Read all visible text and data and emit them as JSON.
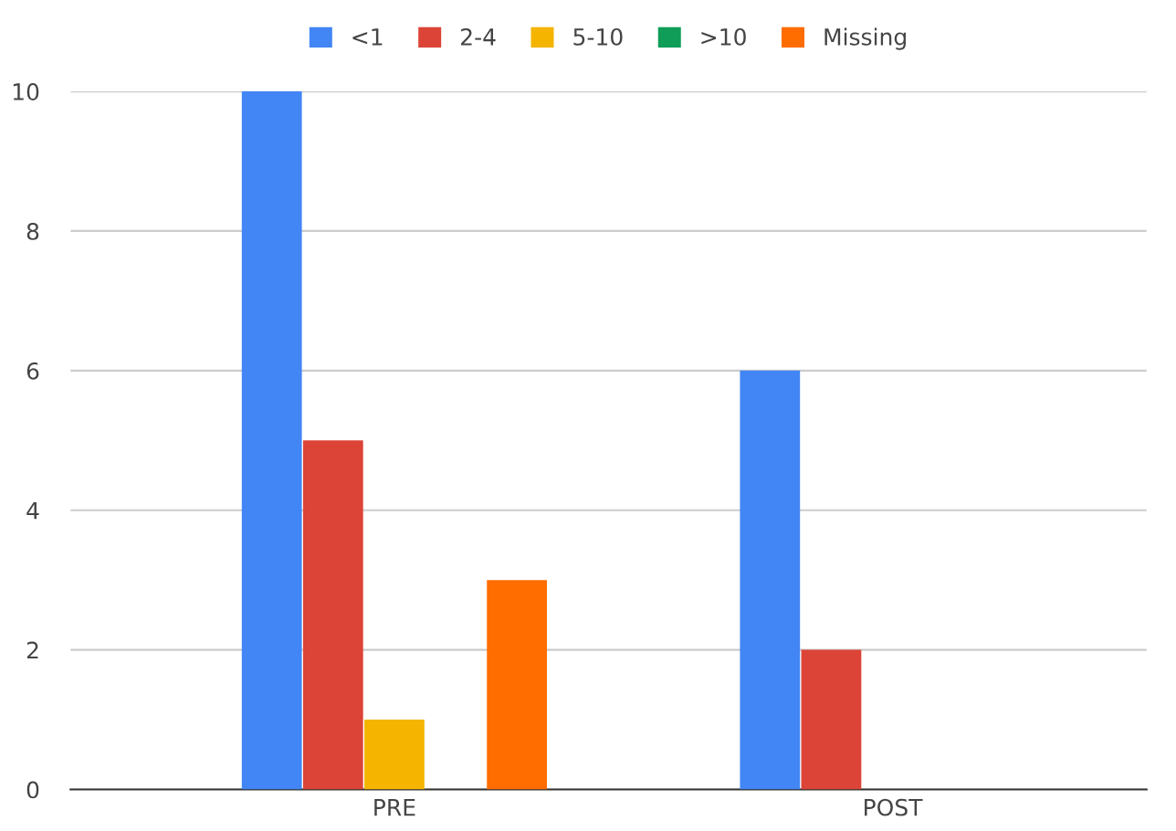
{
  "chart_data": {
    "type": "bar",
    "categories": [
      "PRE",
      "POST"
    ],
    "series": [
      {
        "name": "<1",
        "color": "#4285f4",
        "values": [
          10,
          6
        ]
      },
      {
        "name": "2-4",
        "color": "#db4437",
        "values": [
          5,
          2
        ]
      },
      {
        "name": "5-10",
        "color": "#f4b400",
        "values": [
          1,
          0
        ]
      },
      {
        "name": ">10",
        "color": "#0f9d58",
        "values": [
          0,
          0
        ]
      },
      {
        "name": "Missing",
        "color": "#ff6d00",
        "values": [
          3,
          0
        ]
      }
    ],
    "ylim": [
      0,
      10
    ],
    "yticks": [
      0,
      2,
      4,
      6,
      8,
      10
    ],
    "grid": "y",
    "legend": "top"
  }
}
